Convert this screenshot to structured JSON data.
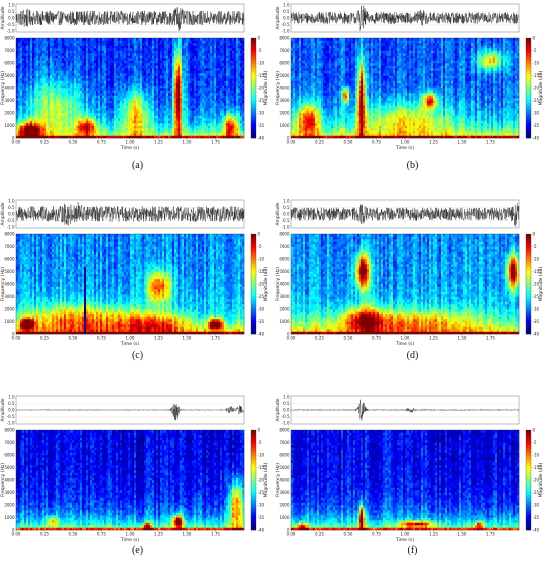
{
  "chart_data": [
    {
      "type": "heatmap",
      "label": "(a)",
      "waveform": {
        "ylabel": "Amplitude",
        "yticks": [
          "1.0",
          "0.5",
          "0.0",
          "-0.5",
          "-1.0"
        ],
        "noise": 0.55,
        "bursts": [
          [
            0.08,
            0.3
          ],
          [
            1.42,
            0.9
          ]
        ]
      },
      "spectrogram": {
        "xlabel": "Time (s)",
        "ylabel": "Frequency (Hz)",
        "xticks": [
          "0.00",
          "0.25",
          "0.50",
          "0.75",
          "1.00",
          "1.25",
          "1.50",
          "1.75"
        ],
        "yticks": [
          "0",
          "1000",
          "2000",
          "3000",
          "4000",
          "5000",
          "6000",
          "7000",
          "8000"
        ],
        "colorbar": {
          "label": "Magnitude (dB)",
          "ticks": [
            "0",
            "-5",
            "-10",
            "-15",
            "-20",
            "-25",
            "-30",
            "-35",
            "-40"
          ]
        },
        "background": 0.1,
        "events": [
          [
            1.42,
            3500,
            0.04,
            3500,
            0.85
          ],
          [
            0.12,
            600,
            0.1,
            700,
            0.7
          ],
          [
            0.62,
            900,
            0.08,
            700,
            0.55
          ],
          [
            1.05,
            2000,
            0.12,
            1800,
            0.4
          ],
          [
            1.88,
            1000,
            0.06,
            900,
            0.55
          ],
          [
            0.35,
            2500,
            0.25,
            2200,
            0.3
          ]
        ]
      }
    },
    {
      "type": "heatmap",
      "label": "(b)",
      "waveform": {
        "ylabel": "Amplitude",
        "yticks": [
          "1.0",
          "0.5",
          "0.0",
          "-0.5",
          "-1.0"
        ],
        "noise": 0.45,
        "bursts": [
          [
            0.62,
            0.9
          ],
          [
            1.15,
            0.3
          ]
        ]
      },
      "spectrogram": {
        "xlabel": "Time (s)",
        "ylabel": "Frequency (Hz)",
        "xticks": [
          "0.00",
          "0.25",
          "0.50",
          "0.75",
          "1.00",
          "1.25",
          "1.50",
          "1.75"
        ],
        "yticks": [
          "0",
          "1000",
          "2000",
          "3000",
          "4000",
          "5000",
          "6000",
          "7000",
          "8000"
        ],
        "colorbar": {
          "label": "Magnitude (dB)",
          "ticks": [
            "0",
            "-5",
            "-10",
            "-15",
            "-20",
            "-25",
            "-30",
            "-35",
            "-40"
          ]
        },
        "background": 0.12,
        "events": [
          [
            0.62,
            3200,
            0.035,
            3200,
            0.8
          ],
          [
            0.48,
            3400,
            0.03,
            600,
            0.6
          ],
          [
            1.22,
            3000,
            0.06,
            600,
            0.6
          ],
          [
            1.75,
            6200,
            0.12,
            800,
            0.45
          ],
          [
            0.15,
            1500,
            0.1,
            1300,
            0.55
          ],
          [
            1.0,
            1500,
            0.4,
            1400,
            0.3
          ]
        ]
      }
    },
    {
      "type": "heatmap",
      "label": "(c)",
      "waveform": {
        "ylabel": "Amplitude",
        "yticks": [
          "1.0",
          "0.5",
          "0.0",
          "-0.5",
          "-1.0"
        ],
        "noise": 0.6,
        "bursts": [
          [
            0.45,
            0.45
          ],
          [
            0.55,
            0.4
          ]
        ]
      },
      "spectrogram": {
        "xlabel": "Time (s)",
        "ylabel": "Frequency (Hz)",
        "xticks": [
          "0.00",
          "0.25",
          "0.50",
          "0.75",
          "1.00",
          "1.25",
          "1.50",
          "1.75"
        ],
        "yticks": [
          "0",
          "1000",
          "2000",
          "3000",
          "4000",
          "5000",
          "6000",
          "7000",
          "8000"
        ],
        "colorbar": {
          "label": "Magnitude (dB)",
          "ticks": [
            "0",
            "-5",
            "-10",
            "-15",
            "-20",
            "-25",
            "-30",
            "-35",
            "-40"
          ]
        },
        "background": 0.18,
        "events": [
          [
            0.1,
            800,
            0.06,
            400,
            0.75
          ],
          [
            1.25,
            3800,
            0.1,
            1300,
            0.55
          ],
          [
            1.75,
            800,
            0.06,
            400,
            0.7
          ],
          [
            0.55,
            1200,
            0.5,
            1200,
            0.35
          ],
          [
            1.2,
            800,
            0.3,
            900,
            0.35
          ]
        ]
      }
    },
    {
      "type": "heatmap",
      "label": "(d)",
      "waveform": {
        "ylabel": "Amplitude",
        "yticks": [
          "1.0",
          "0.5",
          "0.0",
          "-0.5",
          "-1.0"
        ],
        "noise": 0.5,
        "bursts": [
          [
            0.63,
            0.35
          ],
          [
            1.97,
            0.5
          ]
        ]
      },
      "spectrogram": {
        "xlabel": "Time (s)",
        "ylabel": "Frequency (Hz)",
        "xticks": [
          "0.00",
          "0.25",
          "0.50",
          "0.75",
          "1.00",
          "1.25",
          "1.50",
          "1.75"
        ],
        "yticks": [
          "0",
          "1000",
          "2000",
          "3000",
          "4000",
          "5000",
          "6000",
          "7000",
          "8000"
        ],
        "colorbar": {
          "label": "Magnitude (dB)",
          "ticks": [
            "0",
            "-5",
            "-10",
            "-15",
            "-20",
            "-25",
            "-30",
            "-35",
            "-40"
          ]
        },
        "background": 0.18,
        "events": [
          [
            0.63,
            5000,
            0.06,
            1400,
            0.8
          ],
          [
            1.95,
            5000,
            0.05,
            1400,
            0.8
          ],
          [
            0.65,
            1200,
            0.15,
            1000,
            0.45
          ],
          [
            1.0,
            1000,
            0.6,
            1000,
            0.3
          ]
        ]
      }
    },
    {
      "type": "heatmap",
      "label": "(e)",
      "waveform": {
        "ylabel": "Amplitude",
        "yticks": [
          "1.0",
          "0.5",
          "0.0",
          "-0.5",
          "-1.0"
        ],
        "noise": 0.03,
        "bursts": [
          [
            1.4,
            0.8
          ],
          [
            1.88,
            0.35
          ],
          [
            1.96,
            0.35
          ]
        ]
      },
      "spectrogram": {
        "xlabel": "Time (s)",
        "ylabel": "Frequency (Hz)",
        "xticks": [
          "0.00",
          "0.25",
          "0.50",
          "0.75",
          "1.00",
          "1.25",
          "1.50",
          "1.75"
        ],
        "yticks": [
          "0",
          "1000",
          "2000",
          "3000",
          "4000",
          "5000",
          "6000",
          "7000",
          "8000"
        ],
        "colorbar": {
          "label": "Magnitude (dB)",
          "ticks": [
            "0",
            "-5",
            "-10",
            "-15",
            "-20",
            "-25",
            "-30",
            "-35",
            "-40"
          ]
        },
        "background": 0.02,
        "events": [
          [
            1.42,
            700,
            0.04,
            500,
            0.85
          ],
          [
            1.93,
            2000,
            0.06,
            2000,
            0.6
          ],
          [
            0.32,
            700,
            0.05,
            400,
            0.35
          ],
          [
            1.15,
            300,
            0.04,
            300,
            0.55
          ]
        ]
      }
    },
    {
      "type": "heatmap",
      "label": "(f)",
      "waveform": {
        "ylabel": "Amplitude",
        "yticks": [
          "1.0",
          "0.5",
          "0.0",
          "-0.5",
          "-1.0"
        ],
        "noise": 0.04,
        "bursts": [
          [
            0.62,
            0.95
          ],
          [
            1.05,
            0.2
          ]
        ]
      },
      "spectrogram": {
        "xlabel": "Time (s)",
        "ylabel": "Frequency (Hz)",
        "xticks": [
          "0.00",
          "0.25",
          "0.50",
          "0.75",
          "1.00",
          "1.25",
          "1.50",
          "1.75"
        ],
        "yticks": [
          "0",
          "1000",
          "2000",
          "3000",
          "4000",
          "5000",
          "6000",
          "7000",
          "8000"
        ],
        "colorbar": {
          "label": "Magnitude (dB)",
          "ticks": [
            "0",
            "-5",
            "-10",
            "-15",
            "-20",
            "-25",
            "-30",
            "-35",
            "-40"
          ]
        },
        "background": 0.03,
        "events": [
          [
            0.62,
            1000,
            0.025,
            1000,
            0.85
          ],
          [
            1.1,
            500,
            0.15,
            250,
            0.55
          ],
          [
            0.1,
            300,
            0.05,
            300,
            0.45
          ],
          [
            1.65,
            400,
            0.04,
            300,
            0.5
          ]
        ]
      }
    }
  ]
}
